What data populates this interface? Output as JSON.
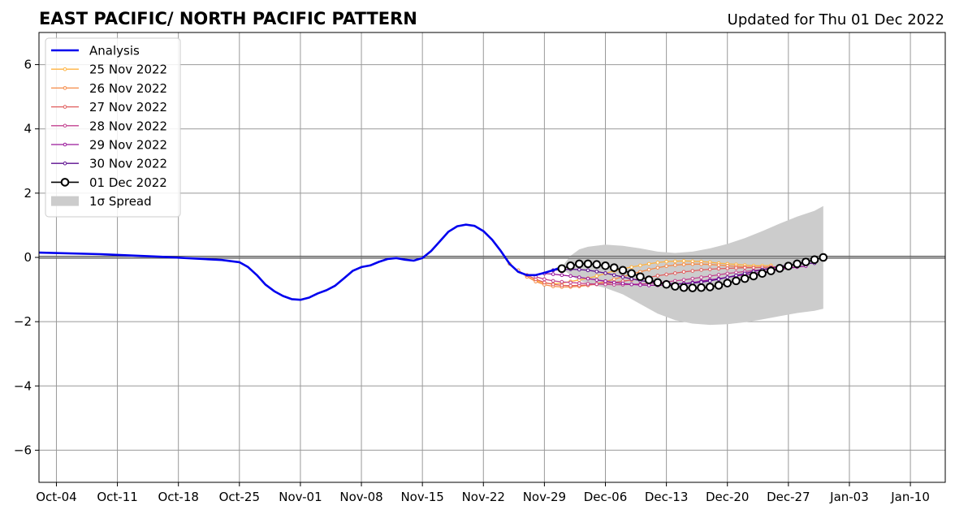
{
  "chart_data": {
    "type": "line",
    "title": "EAST PACIFIC/ NORTH PACIFIC PATTERN",
    "subtitle": "Updated for Thu 01 Dec 2022",
    "xlabel": "",
    "ylabel": "",
    "x_ticks": [
      "Oct-04",
      "Oct-11",
      "Oct-18",
      "Oct-25",
      "Nov-01",
      "Nov-08",
      "Nov-15",
      "Nov-22",
      "Nov-29",
      "Dec-06",
      "Dec-13",
      "Dec-20",
      "Dec-27",
      "Jan-03",
      "Jan-10"
    ],
    "y_ticks": [
      "6",
      "4",
      "2",
      "0",
      "−2",
      "−4",
      "−6"
    ],
    "xlim": [
      "2022-10-02",
      "2023-01-14"
    ],
    "ylim": [
      -7,
      7
    ],
    "grid": true,
    "legend": "top-left",
    "colors": {
      "analysis": "#0000ee",
      "spread": "#cccccc",
      "grid": "#999999",
      "zero_line": "#555555"
    },
    "analysis": {
      "name": "Analysis",
      "x": [
        "2022-10-02",
        "2022-10-09",
        "2022-10-16",
        "2022-10-23",
        "2022-10-25",
        "2022-10-26",
        "2022-10-27",
        "2022-10-28",
        "2022-10-29",
        "2022-10-30",
        "2022-10-31",
        "2022-11-01",
        "2022-11-02",
        "2022-11-03",
        "2022-11-04",
        "2022-11-05",
        "2022-11-06",
        "2022-11-07",
        "2022-11-08",
        "2022-11-09",
        "2022-11-10",
        "2022-11-11",
        "2022-11-12",
        "2022-11-13",
        "2022-11-14",
        "2022-11-15",
        "2022-11-16",
        "2022-11-17",
        "2022-11-18",
        "2022-11-19",
        "2022-11-20",
        "2022-11-21",
        "2022-11-22",
        "2022-11-23",
        "2022-11-24",
        "2022-11-25",
        "2022-11-26",
        "2022-11-27",
        "2022-11-28",
        "2022-11-29",
        "2022-11-30",
        "2022-12-01"
      ],
      "y": [
        0.15,
        0.1,
        0.02,
        -0.08,
        -0.15,
        -0.3,
        -0.55,
        -0.85,
        -1.05,
        -1.2,
        -1.3,
        -1.32,
        -1.25,
        -1.12,
        -1.02,
        -0.88,
        -0.65,
        -0.42,
        -0.3,
        -0.25,
        -0.14,
        -0.05,
        -0.02,
        -0.07,
        -0.1,
        -0.02,
        0.2,
        0.5,
        0.8,
        0.97,
        1.02,
        0.98,
        0.82,
        0.55,
        0.2,
        -0.2,
        -0.45,
        -0.55,
        -0.55,
        -0.48,
        -0.4,
        -0.3
      ]
    },
    "forecasts": [
      {
        "name": "25 Nov 2022",
        "color": "#ffb340",
        "x": [
          "2022-11-25",
          "2022-11-26",
          "2022-11-27",
          "2022-11-28",
          "2022-11-29",
          "2022-11-30",
          "2022-12-01",
          "2022-12-02",
          "2022-12-03",
          "2022-12-04",
          "2022-12-05",
          "2022-12-06",
          "2022-12-07",
          "2022-12-08",
          "2022-12-09",
          "2022-12-10",
          "2022-12-11",
          "2022-12-12",
          "2022-12-13",
          "2022-12-14",
          "2022-12-15",
          "2022-12-16",
          "2022-12-17",
          "2022-12-18",
          "2022-12-19",
          "2022-12-20",
          "2022-12-21",
          "2022-12-22",
          "2022-12-23",
          "2022-12-24",
          "2022-12-25"
        ],
        "y": [
          -0.2,
          -0.42,
          -0.6,
          -0.72,
          -0.8,
          -0.82,
          -0.8,
          -0.75,
          -0.7,
          -0.65,
          -0.58,
          -0.5,
          -0.42,
          -0.35,
          -0.3,
          -0.25,
          -0.2,
          -0.16,
          -0.13,
          -0.12,
          -0.11,
          -0.12,
          -0.13,
          -0.15,
          -0.18,
          -0.2,
          -0.22,
          -0.24,
          -0.26,
          -0.26,
          -0.25
        ]
      },
      {
        "name": "26 Nov 2022",
        "color": "#f58a47",
        "x": [
          "2022-11-26",
          "2022-11-27",
          "2022-11-28",
          "2022-11-29",
          "2022-11-30",
          "2022-12-01",
          "2022-12-02",
          "2022-12-03",
          "2022-12-04",
          "2022-12-05",
          "2022-12-06",
          "2022-12-07",
          "2022-12-08",
          "2022-12-09",
          "2022-12-10",
          "2022-12-11",
          "2022-12-12",
          "2022-12-13",
          "2022-12-14",
          "2022-12-15",
          "2022-12-16",
          "2022-12-17",
          "2022-12-18",
          "2022-12-19",
          "2022-12-20",
          "2022-12-21",
          "2022-12-22",
          "2022-12-23",
          "2022-12-24",
          "2022-12-25",
          "2022-12-26"
        ],
        "y": [
          -0.4,
          -0.6,
          -0.75,
          -0.85,
          -0.9,
          -0.92,
          -0.92,
          -0.9,
          -0.87,
          -0.82,
          -0.75,
          -0.68,
          -0.6,
          -0.52,
          -0.45,
          -0.38,
          -0.32,
          -0.27,
          -0.24,
          -0.22,
          -0.21,
          -0.21,
          -0.22,
          -0.24,
          -0.26,
          -0.28,
          -0.3,
          -0.31,
          -0.31,
          -0.3,
          -0.28
        ]
      },
      {
        "name": "27 Nov 2022",
        "color": "#e05c5c",
        "x": [
          "2022-11-27",
          "2022-11-28",
          "2022-11-29",
          "2022-11-30",
          "2022-12-01",
          "2022-12-02",
          "2022-12-03",
          "2022-12-04",
          "2022-12-05",
          "2022-12-06",
          "2022-12-07",
          "2022-12-08",
          "2022-12-09",
          "2022-12-10",
          "2022-12-11",
          "2022-12-12",
          "2022-12-13",
          "2022-12-14",
          "2022-12-15",
          "2022-12-16",
          "2022-12-17",
          "2022-12-18",
          "2022-12-19",
          "2022-12-20",
          "2022-12-21",
          "2022-12-22",
          "2022-12-23",
          "2022-12-24",
          "2022-12-25",
          "2022-12-26",
          "2022-12-27"
        ],
        "y": [
          -0.55,
          -0.68,
          -0.78,
          -0.84,
          -0.87,
          -0.88,
          -0.87,
          -0.86,
          -0.84,
          -0.81,
          -0.78,
          -0.74,
          -0.7,
          -0.66,
          -0.62,
          -0.57,
          -0.53,
          -0.49,
          -0.45,
          -0.42,
          -0.39,
          -0.37,
          -0.35,
          -0.34,
          -0.33,
          -0.32,
          -0.32,
          -0.31,
          -0.3,
          -0.29,
          -0.28
        ]
      },
      {
        "name": "28 Nov 2022",
        "color": "#c2418f",
        "x": [
          "2022-11-28",
          "2022-11-29",
          "2022-11-30",
          "2022-12-01",
          "2022-12-02",
          "2022-12-03",
          "2022-12-04",
          "2022-12-05",
          "2022-12-06",
          "2022-12-07",
          "2022-12-08",
          "2022-12-09",
          "2022-12-10",
          "2022-12-11",
          "2022-12-12",
          "2022-12-13",
          "2022-12-14",
          "2022-12-15",
          "2022-12-16",
          "2022-12-17",
          "2022-12-18",
          "2022-12-19",
          "2022-12-20",
          "2022-12-21",
          "2022-12-22",
          "2022-12-23",
          "2022-12-24",
          "2022-12-25",
          "2022-12-26",
          "2022-12-27",
          "2022-12-28"
        ],
        "y": [
          -0.6,
          -0.68,
          -0.73,
          -0.76,
          -0.78,
          -0.8,
          -0.82,
          -0.83,
          -0.84,
          -0.85,
          -0.85,
          -0.84,
          -0.83,
          -0.81,
          -0.79,
          -0.76,
          -0.73,
          -0.7,
          -0.66,
          -0.62,
          -0.58,
          -0.54,
          -0.5,
          -0.47,
          -0.44,
          -0.41,
          -0.38,
          -0.36,
          -0.34,
          -0.32,
          -0.3
        ]
      },
      {
        "name": "29 Nov 2022",
        "color": "#9a179b",
        "x": [
          "2022-11-29",
          "2022-11-30",
          "2022-12-01",
          "2022-12-02",
          "2022-12-03",
          "2022-12-04",
          "2022-12-05",
          "2022-12-06",
          "2022-12-07",
          "2022-12-08",
          "2022-12-09",
          "2022-12-10",
          "2022-12-11",
          "2022-12-12",
          "2022-12-13",
          "2022-12-14",
          "2022-12-15",
          "2022-12-16",
          "2022-12-17",
          "2022-12-18",
          "2022-12-19",
          "2022-12-20",
          "2022-12-21",
          "2022-12-22",
          "2022-12-23",
          "2022-12-24",
          "2022-12-25",
          "2022-12-26",
          "2022-12-27",
          "2022-12-28",
          "2022-12-29"
        ],
        "y": [
          -0.5,
          -0.52,
          -0.55,
          -0.58,
          -0.62,
          -0.66,
          -0.7,
          -0.74,
          -0.78,
          -0.81,
          -0.84,
          -0.86,
          -0.87,
          -0.87,
          -0.86,
          -0.84,
          -0.81,
          -0.78,
          -0.74,
          -0.7,
          -0.66,
          -0.62,
          -0.58,
          -0.54,
          -0.5,
          -0.46,
          -0.42,
          -0.38,
          -0.34,
          -0.3,
          -0.27
        ]
      },
      {
        "name": "30 Nov 2022",
        "color": "#5c0e8f",
        "x": [
          "2022-11-30",
          "2022-12-01",
          "2022-12-02",
          "2022-12-03",
          "2022-12-04",
          "2022-12-05",
          "2022-12-06",
          "2022-12-07",
          "2022-12-08",
          "2022-12-09",
          "2022-12-10",
          "2022-12-11",
          "2022-12-12",
          "2022-12-13",
          "2022-12-14",
          "2022-12-15",
          "2022-12-16",
          "2022-12-17",
          "2022-12-18",
          "2022-12-19",
          "2022-12-20",
          "2022-12-21",
          "2022-12-22",
          "2022-12-23",
          "2022-12-24",
          "2022-12-25",
          "2022-12-26",
          "2022-12-27",
          "2022-12-28",
          "2022-12-29",
          "2022-12-30"
        ],
        "y": [
          -0.4,
          -0.38,
          -0.37,
          -0.38,
          -0.4,
          -0.44,
          -0.49,
          -0.55,
          -0.61,
          -0.67,
          -0.72,
          -0.76,
          -0.79,
          -0.81,
          -0.82,
          -0.82,
          -0.8,
          -0.77,
          -0.73,
          -0.68,
          -0.62,
          -0.56,
          -0.5,
          -0.44,
          -0.38,
          -0.33,
          -0.28,
          -0.24,
          -0.21,
          -0.19,
          -0.18
        ]
      },
      {
        "name": "01 Dec 2022",
        "color": "#000000",
        "x": [
          "2022-12-01",
          "2022-12-02",
          "2022-12-03",
          "2022-12-04",
          "2022-12-05",
          "2022-12-06",
          "2022-12-07",
          "2022-12-08",
          "2022-12-09",
          "2022-12-10",
          "2022-12-11",
          "2022-12-12",
          "2022-12-13",
          "2022-12-14",
          "2022-12-15",
          "2022-12-16",
          "2022-12-17",
          "2022-12-18",
          "2022-12-19",
          "2022-12-20",
          "2022-12-21",
          "2022-12-22",
          "2022-12-23",
          "2022-12-24",
          "2022-12-25",
          "2022-12-26",
          "2022-12-27",
          "2022-12-28",
          "2022-12-29",
          "2022-12-30",
          "2022-12-31"
        ],
        "y": [
          -0.35,
          -0.26,
          -0.2,
          -0.2,
          -0.22,
          -0.26,
          -0.32,
          -0.4,
          -0.5,
          -0.6,
          -0.7,
          -0.78,
          -0.84,
          -0.9,
          -0.94,
          -0.95,
          -0.94,
          -0.92,
          -0.87,
          -0.8,
          -0.73,
          -0.66,
          -0.58,
          -0.5,
          -0.42,
          -0.34,
          -0.27,
          -0.2,
          -0.14,
          -0.07,
          0.0
        ]
      }
    ],
    "spread": {
      "name": "1σ Spread",
      "x": [
        "2022-12-01",
        "2022-12-02",
        "2022-12-03",
        "2022-12-04",
        "2022-12-06",
        "2022-12-08",
        "2022-12-10",
        "2022-12-12",
        "2022-12-14",
        "2022-12-16",
        "2022-12-18",
        "2022-12-20",
        "2022-12-22",
        "2022-12-24",
        "2022-12-26",
        "2022-12-28",
        "2022-12-30",
        "2022-12-31"
      ],
      "upper": [
        -0.3,
        0.05,
        0.25,
        0.33,
        0.4,
        0.36,
        0.28,
        0.18,
        0.14,
        0.18,
        0.28,
        0.42,
        0.6,
        0.82,
        1.05,
        1.27,
        1.45,
        1.6
      ],
      "lower": [
        -0.35,
        -0.55,
        -0.72,
        -0.82,
        -0.95,
        -1.15,
        -1.45,
        -1.75,
        -1.95,
        -2.06,
        -2.1,
        -2.08,
        -2.02,
        -1.93,
        -1.83,
        -1.73,
        -1.66,
        -1.6
      ]
    }
  }
}
